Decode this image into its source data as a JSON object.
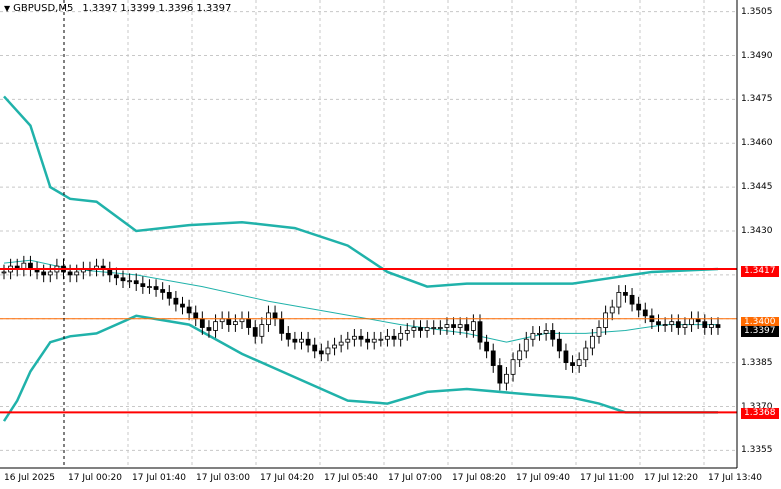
{
  "window": {
    "symbol": "GBPUSD,M5",
    "ohlc": [
      "1.3397",
      "1.3399",
      "1.3396",
      "1.3397"
    ],
    "menu_icon": "triangle-down-icon"
  },
  "price_axis": {
    "labels": [
      "1.3505",
      "1.3490",
      "1.3475",
      "1.3460",
      "1.3445",
      "1.3430",
      "1.3415",
      "1.3385",
      "1.3370",
      "1.3355"
    ],
    "ticks": [
      1.3505,
      1.349,
      1.3475,
      1.346,
      1.3445,
      1.343,
      1.3415,
      1.3385,
      1.337,
      1.3355
    ]
  },
  "time_axis": {
    "labels": [
      "16 Jul 2025",
      "17 Jul 00:20",
      "17 Jul 01:40",
      "17 Jul 03:00",
      "17 Jul 04:20",
      "17 Jul 05:40",
      "17 Jul 07:00",
      "17 Jul 08:20",
      "17 Jul 09:40",
      "17 Jul 11:00",
      "17 Jul 12:20",
      "17 Jul 13:40"
    ]
  },
  "levels": {
    "resistance": {
      "value": 1.3417,
      "label": "1.3417",
      "color": "#ff0000"
    },
    "support": {
      "value": 1.3368,
      "label": "1.3368",
      "color": "#ff0000"
    },
    "mid_line": {
      "value": 1.34,
      "label": "1.3400",
      "color": "#ff6a00"
    },
    "current_price": {
      "value": 1.3397,
      "label": "1.3397",
      "color": "#000000"
    }
  },
  "colors": {
    "background": "#ffffff",
    "grid": "#c8c8c8",
    "bollinger": "#20b2aa",
    "candle": "#000000"
  },
  "chart_data": {
    "type": "candlestick",
    "title": "GBPUSD,M5",
    "y_range": [
      1.335,
      1.351
    ],
    "grid": true,
    "indicator": "Bollinger Bands",
    "bands": {
      "upper": [
        [
          0,
          1.3476
        ],
        [
          4,
          1.3466
        ],
        [
          7,
          1.3445
        ],
        [
          10,
          1.3441
        ],
        [
          14,
          1.344
        ],
        [
          20,
          1.343
        ],
        [
          28,
          1.3432
        ],
        [
          36,
          1.3433
        ],
        [
          44,
          1.3431
        ],
        [
          52,
          1.3425
        ],
        [
          58,
          1.3416
        ],
        [
          64,
          1.3411
        ],
        [
          70,
          1.3412
        ],
        [
          80,
          1.3412
        ],
        [
          86,
          1.3412
        ],
        [
          92,
          1.3414
        ],
        [
          98,
          1.3416
        ],
        [
          108,
          1.3417
        ]
      ],
      "middle": [
        [
          0,
          1.3419
        ],
        [
          4,
          1.342
        ],
        [
          10,
          1.3417
        ],
        [
          20,
          1.3415
        ],
        [
          30,
          1.3411
        ],
        [
          40,
          1.3406
        ],
        [
          50,
          1.3402
        ],
        [
          60,
          1.3398
        ],
        [
          70,
          1.3395
        ],
        [
          76,
          1.3392
        ],
        [
          82,
          1.3395
        ],
        [
          88,
          1.3395
        ],
        [
          94,
          1.3396
        ],
        [
          100,
          1.3398
        ],
        [
          108,
          1.3398
        ]
      ],
      "lower": [
        [
          0,
          1.3365
        ],
        [
          2,
          1.3372
        ],
        [
          4,
          1.3382
        ],
        [
          7,
          1.3392
        ],
        [
          10,
          1.3394
        ],
        [
          14,
          1.3395
        ],
        [
          20,
          1.3401
        ],
        [
          28,
          1.3398
        ],
        [
          36,
          1.3388
        ],
        [
          44,
          1.338
        ],
        [
          52,
          1.3372
        ],
        [
          58,
          1.3371
        ],
        [
          64,
          1.3375
        ],
        [
          70,
          1.3376
        ],
        [
          80,
          1.3374
        ],
        [
          86,
          1.3373
        ],
        [
          90,
          1.3371
        ],
        [
          94,
          1.3368
        ],
        [
          100,
          1.3368
        ],
        [
          108,
          1.3368
        ]
      ]
    },
    "candles_close": [
      1.3416,
      1.3418,
      1.3417,
      1.3419,
      1.3417,
      1.3416,
      1.3415,
      1.3416,
      1.3418,
      1.3416,
      1.3415,
      1.3416,
      1.3417,
      1.3417,
      1.3418,
      1.3417,
      1.3415,
      1.3414,
      1.3413,
      1.3413,
      1.3412,
      1.3411,
      1.3411,
      1.341,
      1.3409,
      1.3407,
      1.3405,
      1.3404,
      1.3402,
      1.34,
      1.3397,
      1.3396,
      1.3399,
      1.34,
      1.3398,
      1.3399,
      1.34,
      1.3397,
      1.3394,
      1.3398,
      1.3402,
      1.34,
      1.3395,
      1.3393,
      1.3392,
      1.3393,
      1.3391,
      1.3389,
      1.3388,
      1.339,
      1.3391,
      1.3392,
      1.3393,
      1.3394,
      1.3393,
      1.3392,
      1.3393,
      1.3393,
      1.3394,
      1.3393,
      1.3395,
      1.3396,
      1.3397,
      1.3396,
      1.3397,
      1.3397,
      1.3397,
      1.3398,
      1.3397,
      1.3398,
      1.3396,
      1.3399,
      1.3392,
      1.3389,
      1.3384,
      1.3378,
      1.3381,
      1.3386,
      1.3389,
      1.3393,
      1.3395,
      1.3395,
      1.3396,
      1.3393,
      1.3389,
      1.3385,
      1.3384,
      1.3386,
      1.339,
      1.3394,
      1.3397,
      1.3402,
      1.3404,
      1.3409,
      1.3408,
      1.3405,
      1.3403,
      1.3401,
      1.3399,
      1.3398,
      1.3398,
      1.3399,
      1.3397,
      1.3398,
      1.34,
      1.3399,
      1.3397,
      1.3398,
      1.3397
    ]
  }
}
